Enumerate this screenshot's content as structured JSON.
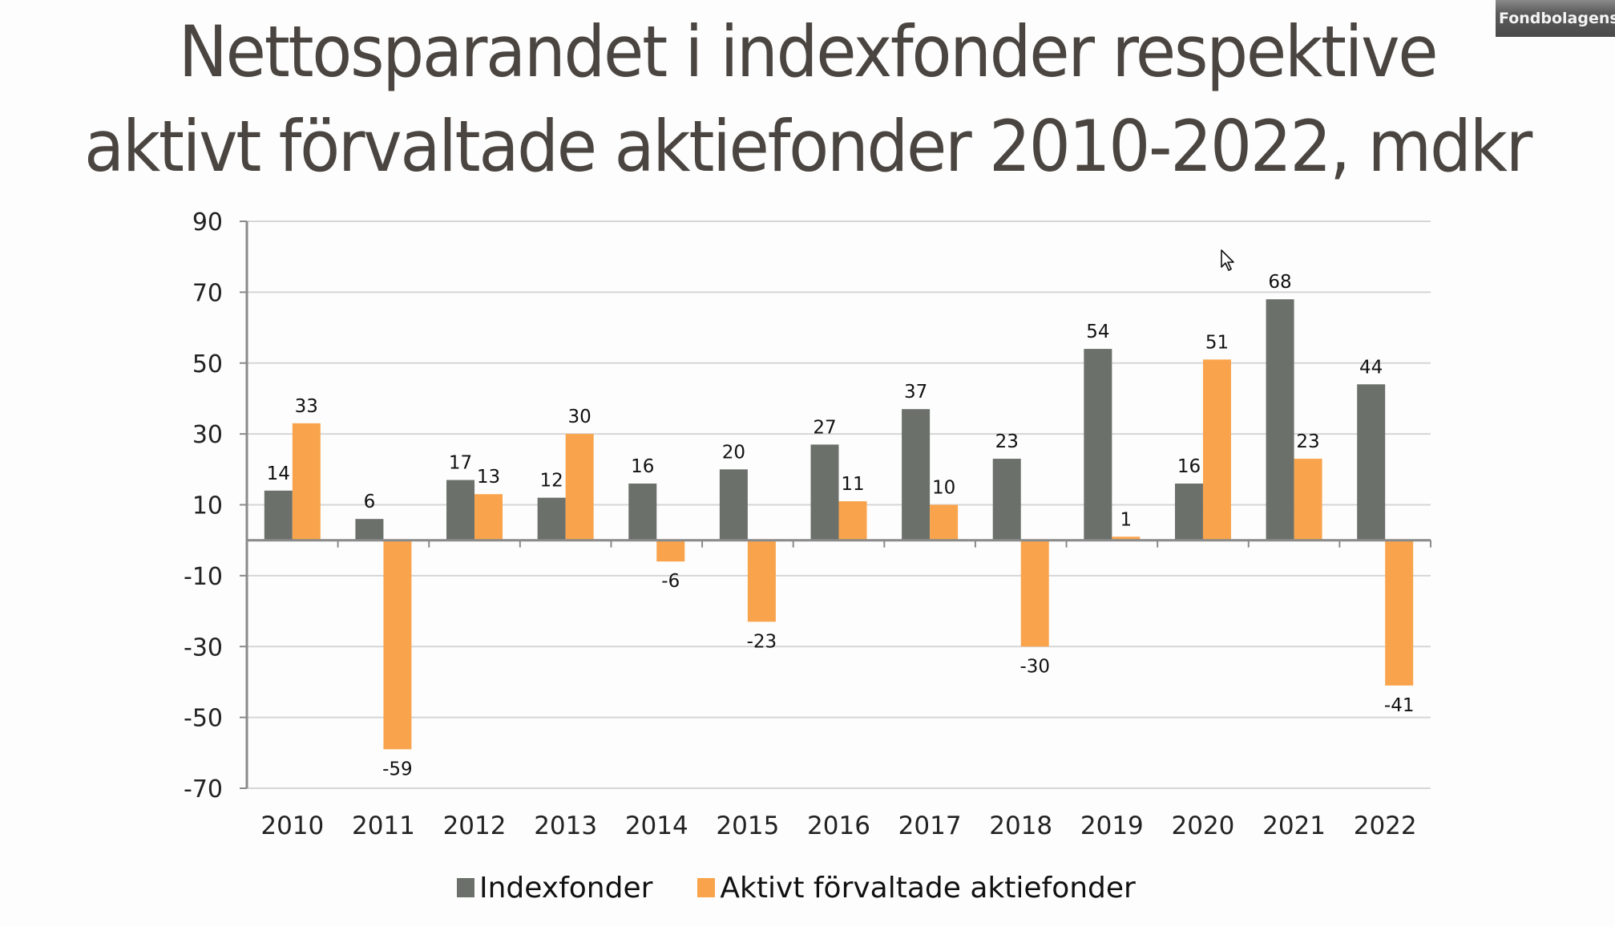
{
  "badge": {
    "text": "Fondbolagens"
  },
  "colors": {
    "indexfonder": "#6b706b",
    "aktiva": "#f9a44c",
    "grid": "#d6d6d6",
    "axis": "#8a8a8a",
    "title": "#4a4540"
  },
  "chart_data": {
    "type": "bar",
    "title_lines": [
      "Nettosparandet i indexfonder respektive",
      "aktivt förvaltade aktiefonder 2010-2022, mdkr"
    ],
    "title": "Nettosparandet i indexfonder respektive aktivt förvaltade aktiefonder 2010-2022, mdkr",
    "xlabel": "",
    "ylabel": "",
    "categories": [
      "2010",
      "2011",
      "2012",
      "2013",
      "2014",
      "2015",
      "2016",
      "2017",
      "2018",
      "2019",
      "2020",
      "2021",
      "2022"
    ],
    "series": [
      {
        "name": "Indexfonder",
        "color_key": "indexfonder",
        "values": [
          14,
          6,
          17,
          12,
          16,
          20,
          27,
          37,
          23,
          54,
          16,
          68,
          44
        ]
      },
      {
        "name": "Aktivt förvaltade aktiefonder",
        "color_key": "aktiva",
        "values": [
          33,
          -59,
          13,
          30,
          -6,
          -23,
          11,
          10,
          -30,
          1,
          51,
          23,
          -41
        ]
      }
    ],
    "ylim": [
      -70,
      90
    ],
    "yticks": [
      90,
      70,
      50,
      30,
      10,
      -10,
      -30,
      -50,
      -70
    ],
    "grid": true,
    "legend_position": "bottom",
    "data_labels": true
  }
}
